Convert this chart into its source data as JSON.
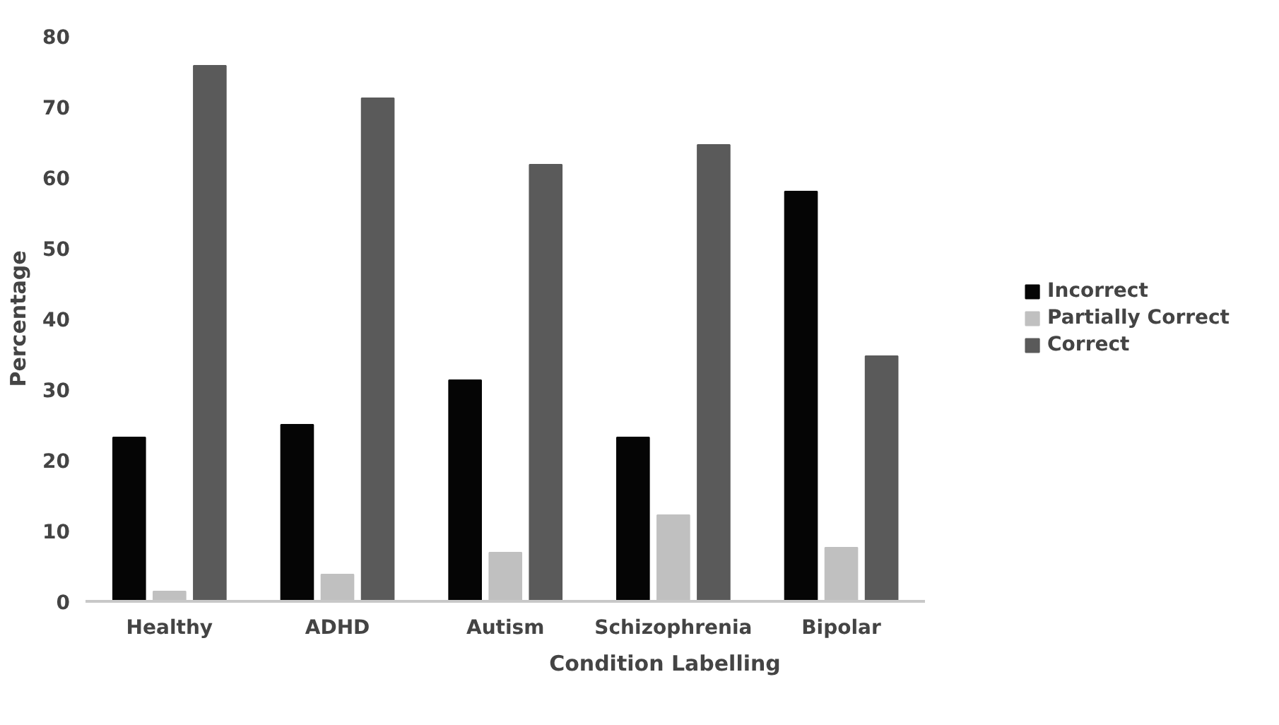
{
  "chart_data": {
    "type": "bar",
    "xlabel": "Condition Labelling",
    "ylabel": "Percentage",
    "categories": [
      "Healthy",
      "ADHD",
      "Autism",
      "Schizophrenia",
      "Bipolar"
    ],
    "series": [
      {
        "name": "Incorrect",
        "color": "#050505",
        "values": [
          23.2,
          25.0,
          31.3,
          23.2,
          58.0
        ]
      },
      {
        "name": "Partially Correct",
        "color": "#c0c0c0",
        "values": [
          1.4,
          3.8,
          6.9,
          12.2,
          7.6
        ]
      },
      {
        "name": "Correct",
        "color": "#5a5a5a",
        "values": [
          75.8,
          71.2,
          61.8,
          64.6,
          34.7
        ]
      }
    ],
    "ylim": [
      0,
      80
    ],
    "yticks": [
      0,
      10,
      20,
      30,
      40,
      50,
      60,
      70,
      80
    ],
    "grid": false,
    "legend": "right"
  }
}
